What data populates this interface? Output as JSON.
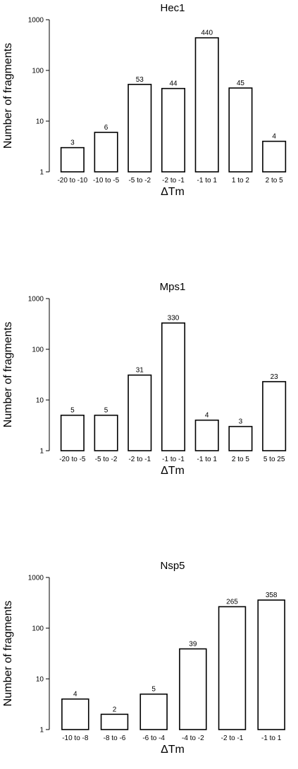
{
  "chart_data": [
    {
      "type": "bar",
      "title": "Hec1",
      "xlabel": "ΔTm",
      "ylabel": "Number of fragments",
      "yscale": "log",
      "ylim": [
        1,
        1000
      ],
      "yticks": [
        "1",
        "10",
        "100",
        "1000"
      ],
      "grid": false,
      "categories": [
        "-20 to -10",
        "-10 to -5",
        "-5 to -2",
        "-2 to -1",
        "-1 to 1",
        "1 to 2",
        "2 to 5"
      ],
      "values": [
        3,
        6,
        53,
        44,
        440,
        45,
        4
      ],
      "data_labels": [
        "3",
        "6",
        "53",
        "44",
        "440",
        "45",
        "4"
      ]
    },
    {
      "type": "bar",
      "title": "Mps1",
      "xlabel": "ΔTm",
      "ylabel": "Number of fragments",
      "yscale": "log",
      "ylim": [
        1,
        1000
      ],
      "yticks": [
        "1",
        "10",
        "100",
        "1000"
      ],
      "grid": false,
      "categories": [
        "-20 to -5",
        "-5 to -2",
        "-2 to -1",
        "-1 to -1",
        "-1 to 1",
        "2 to 5",
        "5 to 25"
      ],
      "values": [
        5,
        5,
        31,
        330,
        4,
        3,
        23
      ],
      "data_labels": [
        "5",
        "5",
        "31",
        "330",
        "4",
        "3",
        "23"
      ]
    },
    {
      "type": "bar",
      "title": "Nsp5",
      "xlabel": "ΔTm",
      "ylabel": "Number of fragments",
      "yscale": "log",
      "ylim": [
        1,
        1000
      ],
      "yticks": [
        "1",
        "10",
        "100",
        "1000"
      ],
      "grid": false,
      "categories": [
        "-10 to -8",
        "-8 to -6",
        "-6 to -4",
        "-4 to -2",
        "-2 to -1",
        "-1 to 1"
      ],
      "values": [
        4,
        2,
        5,
        39,
        265,
        358
      ],
      "data_labels": [
        "4",
        "2",
        "5",
        "39",
        "265",
        "358"
      ]
    }
  ]
}
